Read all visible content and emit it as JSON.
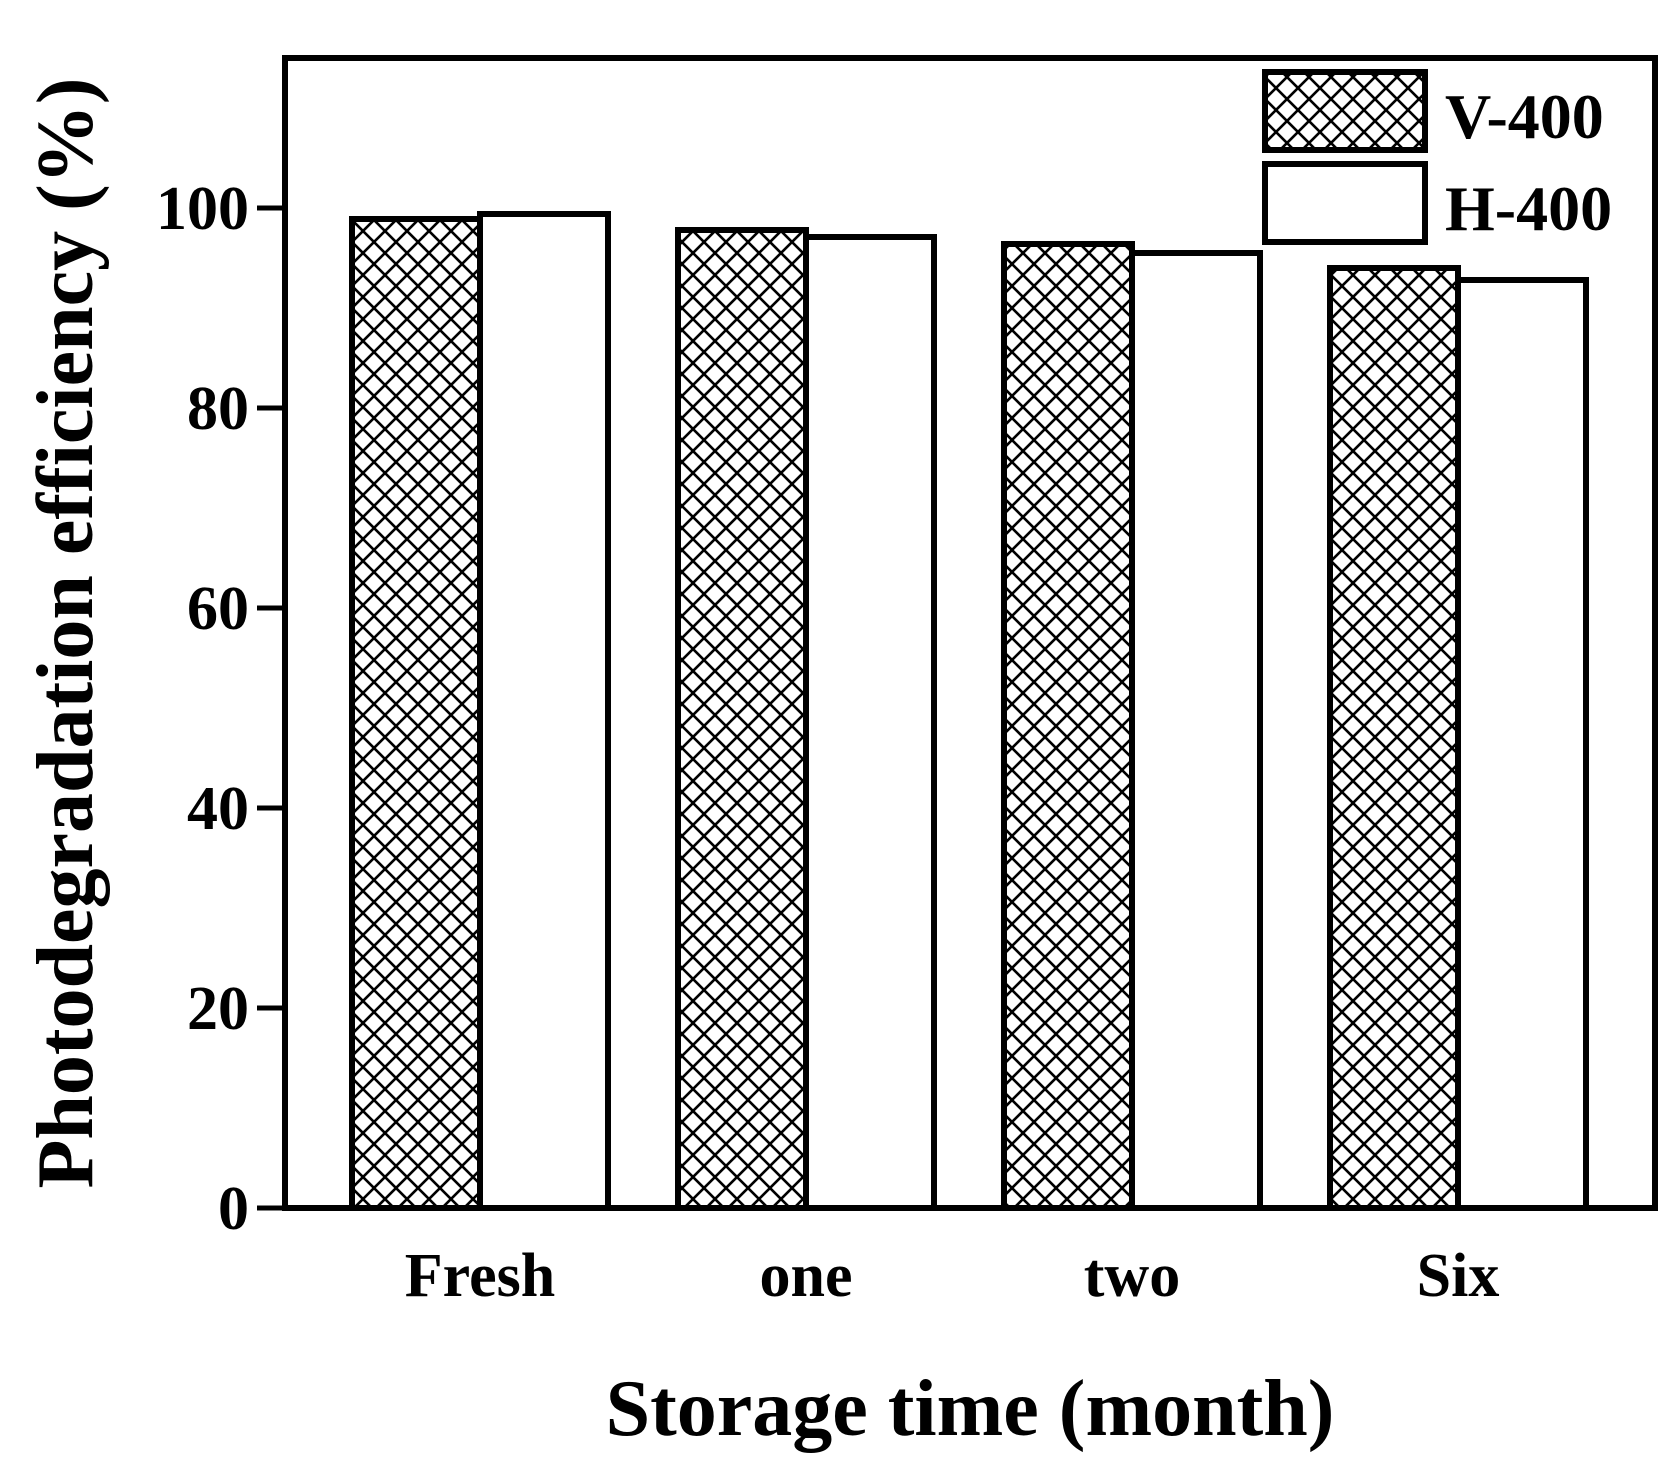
{
  "chart_data": {
    "type": "bar",
    "categories": [
      "Fresh",
      "one",
      "two",
      "Six"
    ],
    "series": [
      {
        "name": "V-400",
        "values": [
          98.9,
          97.8,
          96.4,
          94.0
        ],
        "fill": "crosshatch"
      },
      {
        "name": "H-400",
        "values": [
          99.4,
          97.1,
          95.5,
          92.8
        ],
        "fill": "white"
      }
    ],
    "xlabel": "Storage time (month)",
    "ylabel": "Photodegradation efficiency (%)",
    "ylim": [
      0,
      115
    ],
    "yticks": [
      "0",
      "20",
      "40",
      "60",
      "80",
      "100"
    ],
    "grid": false,
    "legend_position": "top-right"
  },
  "colors": {
    "stroke": "#000000",
    "background": "#ffffff"
  }
}
